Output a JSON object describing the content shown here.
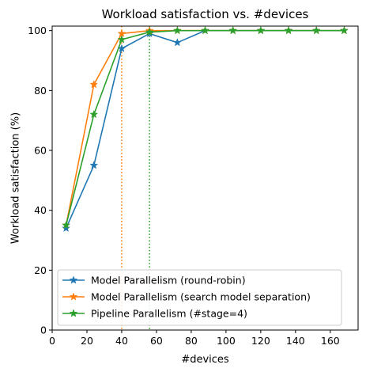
{
  "chart_data": {
    "type": "line",
    "title": "Workload satisfaction vs. #devices",
    "xlabel": "#devices",
    "ylabel": "Workload satisfaction (%)",
    "xlim": [
      0,
      176
    ],
    "ylim": [
      0,
      101.5
    ],
    "xticks": [
      0,
      20,
      40,
      60,
      80,
      100,
      120,
      140,
      160
    ],
    "yticks": [
      0,
      20,
      40,
      60,
      80,
      100
    ],
    "grid": false,
    "legend_position": "lower-right",
    "marker": "star",
    "series": [
      {
        "name": "Model Parallelism (round-robin)",
        "color": "#1f77b4",
        "x": [
          8,
          24,
          40,
          56,
          72,
          88,
          104,
          120,
          136,
          152,
          168
        ],
        "y": [
          34,
          55,
          94,
          99,
          96,
          100,
          100,
          100,
          100,
          100,
          100
        ]
      },
      {
        "name": "Model Parallelism (search model separation)",
        "color": "#ff7f0e",
        "x": [
          8,
          24,
          40,
          56,
          72,
          88,
          104,
          120,
          136,
          152,
          168
        ],
        "y": [
          35,
          82,
          99,
          100,
          100,
          100,
          100,
          100,
          100,
          100,
          100
        ]
      },
      {
        "name": "Pipeline Parallelism (#stage=4)",
        "color": "#2ca02c",
        "x": [
          8,
          24,
          40,
          56,
          72,
          88,
          104,
          120,
          136,
          152,
          168
        ],
        "y": [
          35,
          72,
          97,
          99.5,
          100,
          100,
          100,
          100,
          100,
          100,
          100
        ]
      }
    ],
    "vlines": [
      {
        "x": 40,
        "color": "#ff7f0e",
        "style": "dotted"
      },
      {
        "x": 56,
        "color": "#2ca02c",
        "style": "dotted"
      }
    ]
  }
}
